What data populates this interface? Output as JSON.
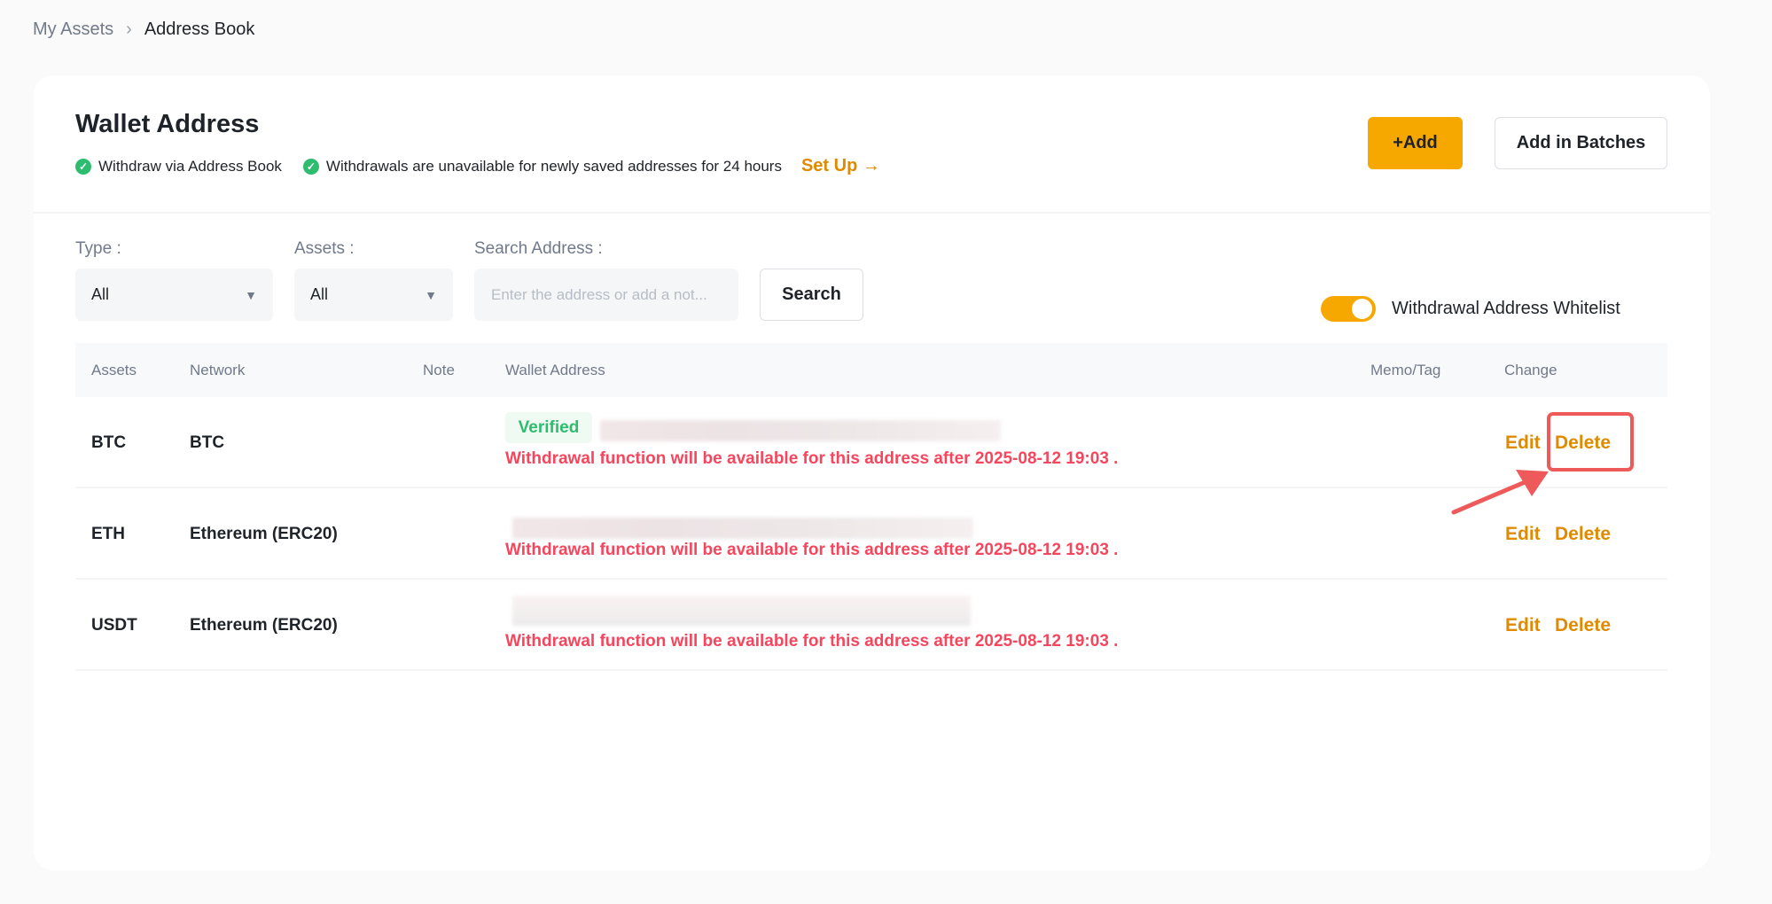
{
  "breadcrumb": {
    "parent": "My Assets",
    "current": "Address Book"
  },
  "header": {
    "title": "Wallet Address",
    "info1": "Withdraw via Address Book",
    "info2": "Withdrawals are unavailable for newly saved addresses for 24 hours",
    "setup": "Set Up →",
    "add": "+Add",
    "batch": "Add in Batches"
  },
  "filters": {
    "type_label": "Type :",
    "type_value": "All",
    "assets_label": "Assets :",
    "assets_value": "All",
    "search_label": "Search Address :",
    "search_placeholder": "Enter the address or add a not...",
    "search_button": "Search"
  },
  "whitelist": {
    "label": "Withdrawal Address Whitelist",
    "enabled": true
  },
  "table": {
    "headers": [
      "Assets",
      "Network",
      "Note",
      "Wallet Address",
      "Memo/Tag",
      "Change"
    ],
    "rows": [
      {
        "asset": "BTC",
        "network": "BTC",
        "badge": "Verified",
        "warning": "Withdrawal function will be available for this address after 2025-08-12 19:03 .",
        "edit": "Edit",
        "delete": "Delete"
      },
      {
        "asset": "ETH",
        "network": "Ethereum (ERC20)",
        "warning": "Withdrawal function will be available for this address after 2025-08-12 19:03 .",
        "edit": "Edit",
        "delete": "Delete"
      },
      {
        "asset": "USDT",
        "network": "Ethereum (ERC20)",
        "warning": "Withdrawal function will be available for this address after 2025-08-12 19:03 .",
        "edit": "Edit",
        "delete": "Delete"
      }
    ]
  },
  "colors": {
    "accent": "#f6a700",
    "link": "#e08a00",
    "warning": "#f6465d",
    "verified": "#2ebd6f",
    "annotation": "#ee5a5a"
  }
}
